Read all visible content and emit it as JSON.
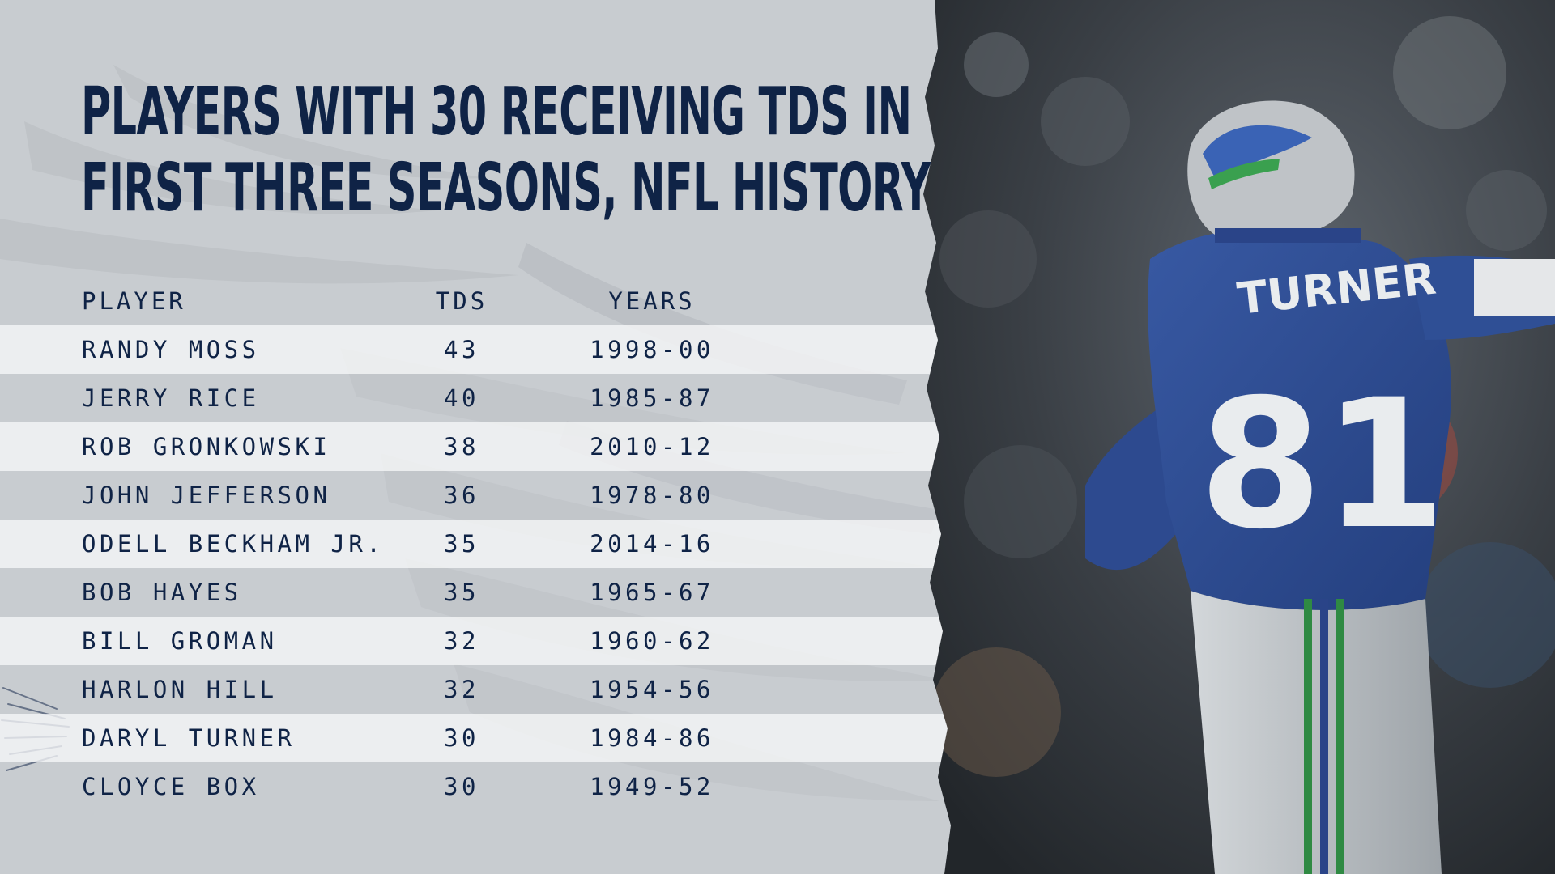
{
  "title_lines": [
    "PLAYERS WITH 30 RECEIVING TDS IN",
    "FIRST THREE SEASONS, NFL HISTORY"
  ],
  "headers": {
    "player": "PLAYER",
    "tds": "TDS",
    "years": "YEARS"
  },
  "rows": [
    {
      "player": "RANDY MOSS",
      "tds": "43",
      "years": "1998-00"
    },
    {
      "player": "JERRY RICE",
      "tds": "40",
      "years": "1985-87"
    },
    {
      "player": "ROB GRONKOWSKI",
      "tds": "38",
      "years": "2010-12"
    },
    {
      "player": "JOHN JEFFERSON",
      "tds": "36",
      "years": "1978-80"
    },
    {
      "player": "ODELL BECKHAM JR.",
      "tds": "35",
      "years": "2014-16"
    },
    {
      "player": "BOB HAYES",
      "tds": "35",
      "years": "1965-67"
    },
    {
      "player": "BILL GROMAN",
      "tds": "32",
      "years": "1960-62"
    },
    {
      "player": "HARLON HILL",
      "tds": "32",
      "years": "1954-56"
    },
    {
      "player": "DARYL TURNER",
      "tds": "30",
      "years": "1984-86"
    },
    {
      "player": "CLOYCE BOX",
      "tds": "30",
      "years": "1949-52"
    }
  ],
  "photo": {
    "jersey_name": "TURNER",
    "jersey_number": "81"
  },
  "colors": {
    "title": "#0f2346",
    "background": "#c8ccd0",
    "row_light": "#f2f3f4",
    "jersey_blue": "#2f4f95",
    "helmet_silver": "#b9bec3",
    "stripe_green": "#2f8a43"
  }
}
